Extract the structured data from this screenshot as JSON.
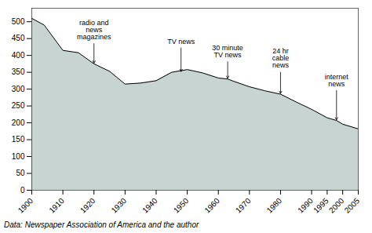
{
  "chart_data": {
    "type": "area",
    "x": [
      1900,
      1904,
      1910,
      1915,
      1920,
      1925,
      1930,
      1935,
      1940,
      1945,
      1950,
      1955,
      1960,
      1963,
      1965,
      1970,
      1975,
      1980,
      1985,
      1990,
      1995,
      1998,
      2000,
      2005
    ],
    "values": [
      510,
      490,
      415,
      408,
      375,
      353,
      315,
      318,
      325,
      350,
      358,
      348,
      333,
      330,
      323,
      307,
      295,
      285,
      262,
      240,
      215,
      207,
      196,
      182
    ],
    "color": "#c8d4d2",
    "xlim": [
      1900,
      2005
    ],
    "ylim": [
      0,
      540
    ],
    "xticks": [
      1900,
      1910,
      1920,
      1930,
      1940,
      1950,
      1960,
      1970,
      1980,
      1990,
      1995,
      2000,
      2005
    ],
    "yticks": [
      0,
      50,
      100,
      150,
      200,
      250,
      300,
      350,
      400,
      450,
      500
    ],
    "grid": false,
    "annotations": [
      {
        "text": "radio and\nnews\nmagazines",
        "x": 1920,
        "y": 375,
        "text_x": 1920,
        "text_y": 505
      },
      {
        "text": "TV news",
        "x": 1948,
        "y": 350,
        "text_x": 1948,
        "text_y": 450
      },
      {
        "text": "30 minute\nTV news",
        "x": 1963,
        "y": 330,
        "text_x": 1963,
        "text_y": 430
      },
      {
        "text": "24 hr\ncable\nnews",
        "x": 1980,
        "y": 285,
        "text_x": 1980,
        "text_y": 420
      },
      {
        "text": "internet\nnews",
        "x": 1998,
        "y": 207,
        "text_x": 1998,
        "text_y": 345
      }
    ],
    "caption": "Data: Newspaper Association of America and the author"
  }
}
